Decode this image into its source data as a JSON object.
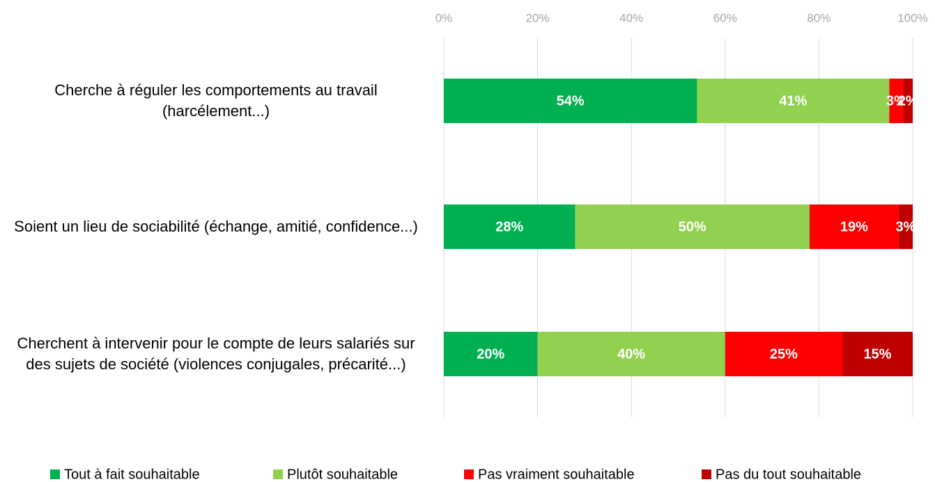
{
  "chart_data": {
    "type": "stacked_bar_horizontal",
    "categories": [
      "Cherche à réguler les comportements au travail (harcélement...)",
      "Soient un lieu de sociabilité (échange, amitié, confidence...)",
      "Cherchent à intervenir pour le compte de leurs salariés sur des sujets de société (violences conjugales, précarité...)"
    ],
    "series": [
      {
        "name": "Tout à fait souhaitable",
        "color": "#00b050",
        "values": [
          54,
          28,
          20
        ]
      },
      {
        "name": "Plutôt souhaitable",
        "color": "#92d050",
        "values": [
          41,
          50,
          40
        ]
      },
      {
        "name": "Pas vraiment souhaitable",
        "color": "#ff0000",
        "values": [
          3,
          19,
          25
        ]
      },
      {
        "name": "Pas du tout souhaitable",
        "color": "#c00000",
        "values": [
          2,
          3,
          15
        ]
      }
    ],
    "xlim": [
      0,
      100
    ],
    "xticks": [
      {
        "value": 0,
        "label": "0%"
      },
      {
        "value": 20,
        "label": "20%"
      },
      {
        "value": 40,
        "label": "40%"
      },
      {
        "value": 60,
        "label": "60%"
      },
      {
        "value": 80,
        "label": "80%"
      },
      {
        "value": 100,
        "label": "100%"
      }
    ],
    "grid": true,
    "legend": "bottom"
  }
}
